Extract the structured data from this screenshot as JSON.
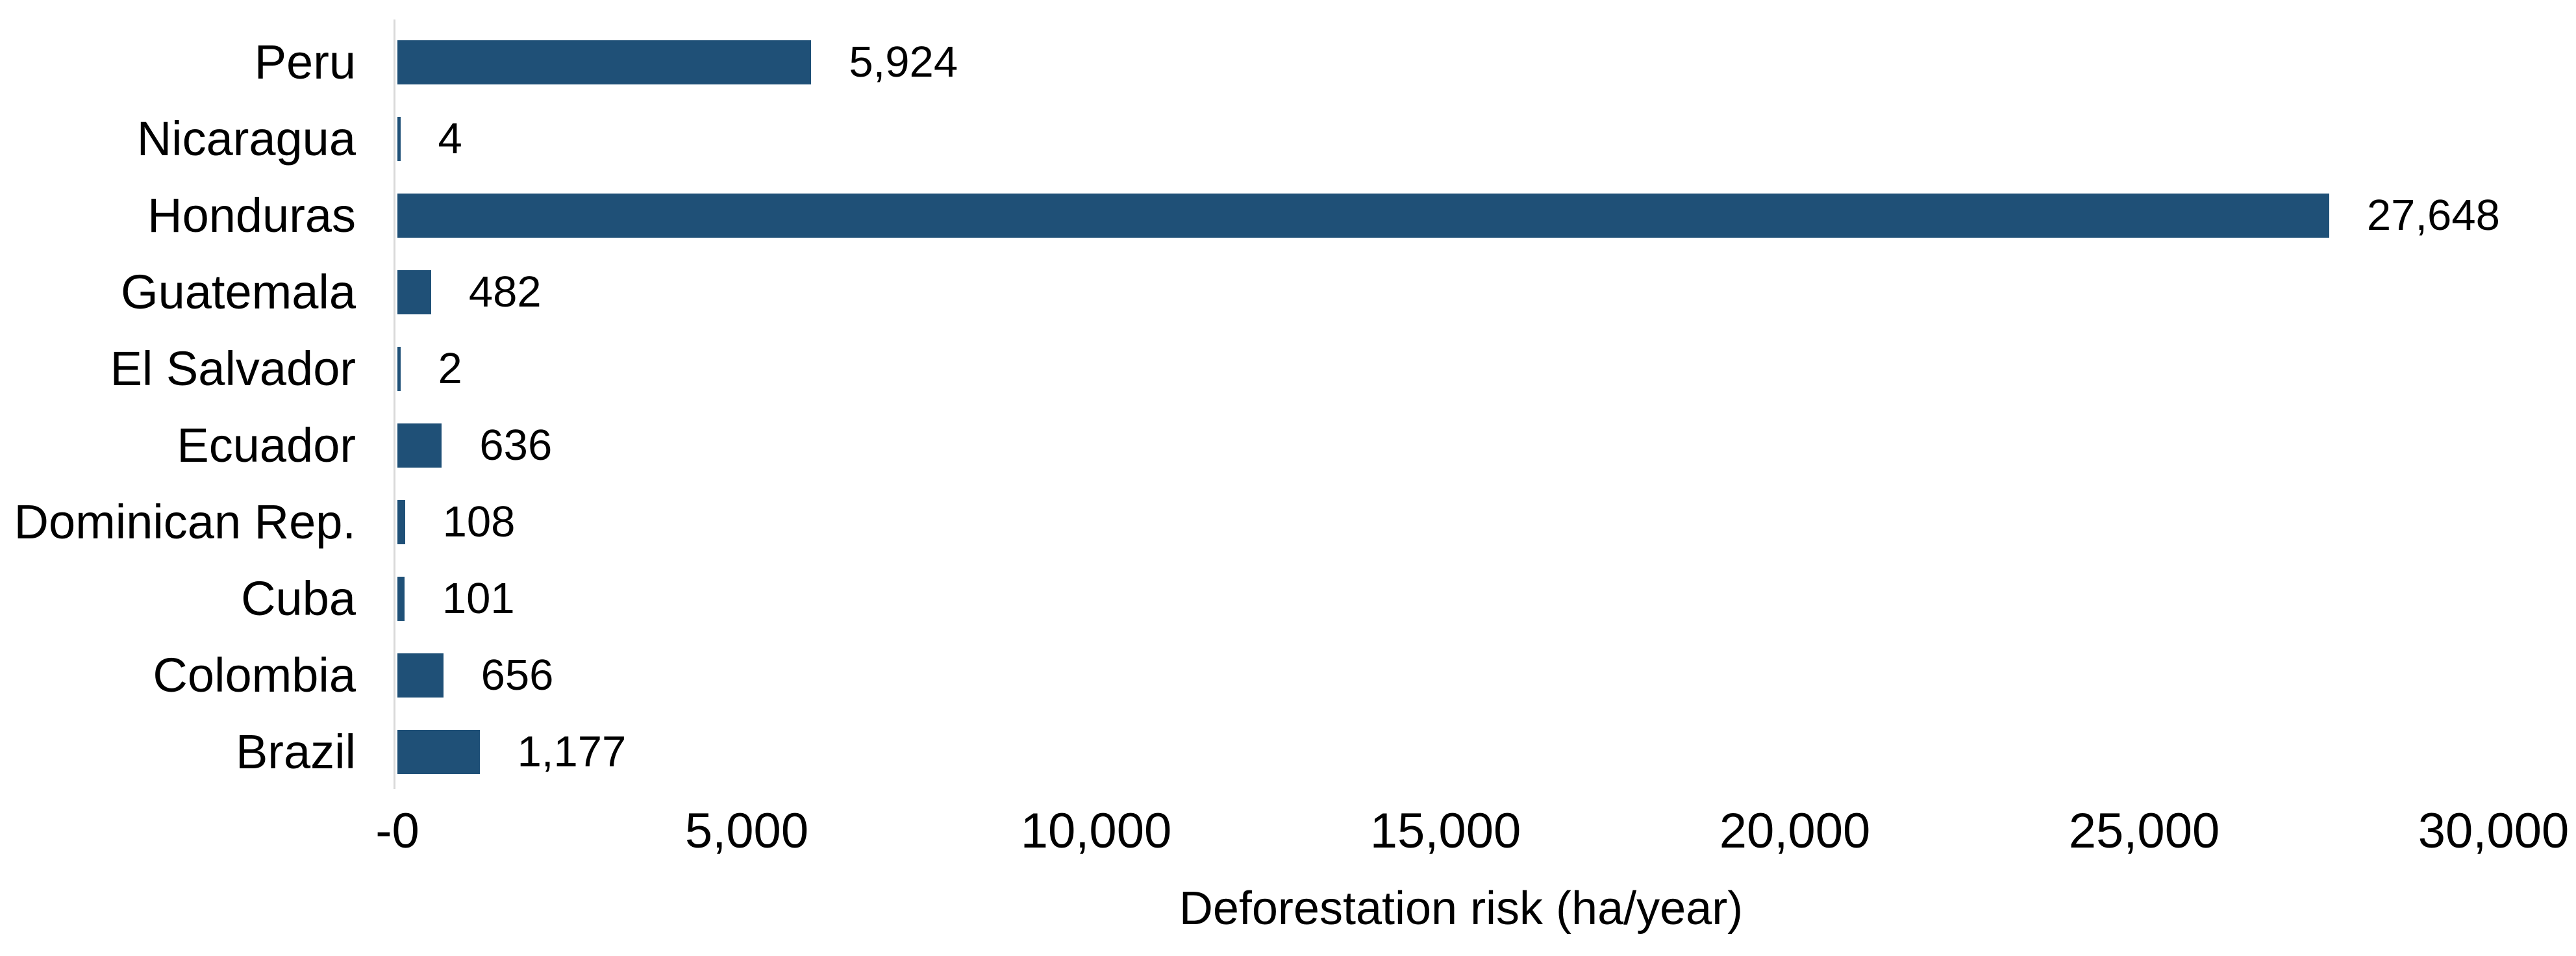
{
  "chart_data": {
    "type": "bar",
    "orientation": "horizontal",
    "title": "",
    "xlabel": "Deforestation risk (ha/year)",
    "ylabel": "",
    "categories": [
      "Peru",
      "Nicaragua",
      "Honduras",
      "Guatemala",
      "El Salvador",
      "Ecuador",
      "Dominican Rep.",
      "Cuba",
      "Colombia",
      "Brazil"
    ],
    "values": [
      5924,
      4,
      27648,
      482,
      2,
      636,
      108,
      101,
      656,
      1177
    ],
    "value_labels": [
      "5,924",
      "4",
      "27,648",
      "482",
      "2",
      "636",
      "108",
      "101",
      "656",
      "1,177"
    ],
    "xlim": [
      0,
      30000
    ],
    "x_ticks": [
      {
        "value": 0,
        "label": "-0"
      },
      {
        "value": 5000,
        "label": "5,000"
      },
      {
        "value": 10000,
        "label": "10,000"
      },
      {
        "value": 15000,
        "label": "15,000"
      },
      {
        "value": 20000,
        "label": "20,000"
      },
      {
        "value": 25000,
        "label": "25,000"
      },
      {
        "value": 30000,
        "label": "30,000"
      }
    ],
    "grid": false,
    "legend": false,
    "colors": {
      "bar": "#1F5077",
      "axis_line": "#D9D9D9",
      "text": "#000000",
      "background": "#FFFFFF"
    }
  }
}
